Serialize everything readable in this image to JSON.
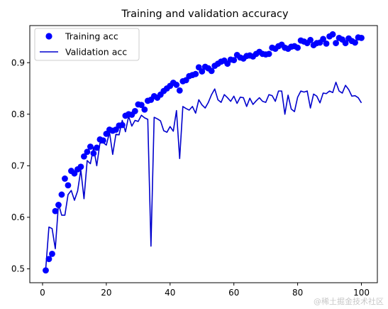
{
  "chart_data": {
    "type": "line",
    "title": "Training and validation accuracy",
    "xlabel": "",
    "ylabel": "",
    "xlim": [
      -4,
      105
    ],
    "ylim": [
      0.473,
      0.972
    ],
    "xticks": [
      0,
      20,
      40,
      60,
      80,
      100
    ],
    "yticks": [
      0.5,
      0.6,
      0.7,
      0.8,
      0.9
    ],
    "xtick_labels": [
      "0",
      "20",
      "40",
      "60",
      "80",
      "100"
    ],
    "ytick_labels": [
      "0.5",
      "0.6",
      "0.7",
      "0.8",
      "0.9"
    ],
    "grid": false,
    "legend_position": "upper-left",
    "x": [
      1,
      2,
      3,
      4,
      5,
      6,
      7,
      8,
      9,
      10,
      11,
      12,
      13,
      14,
      15,
      16,
      17,
      18,
      19,
      20,
      21,
      22,
      23,
      24,
      25,
      26,
      27,
      28,
      29,
      30,
      31,
      32,
      33,
      34,
      35,
      36,
      37,
      38,
      39,
      40,
      41,
      42,
      43,
      44,
      45,
      46,
      47,
      48,
      49,
      50,
      51,
      52,
      53,
      54,
      55,
      56,
      57,
      58,
      59,
      60,
      61,
      62,
      63,
      64,
      65,
      66,
      67,
      68,
      69,
      70,
      71,
      72,
      73,
      74,
      75,
      76,
      77,
      78,
      79,
      80,
      81,
      82,
      83,
      84,
      85,
      86,
      87,
      88,
      89,
      90,
      91,
      92,
      93,
      94,
      95,
      96,
      97,
      98,
      99,
      100
    ],
    "series": [
      {
        "name": "Training acc",
        "style": "dots",
        "color": "#0000ff",
        "values": [
          0.497,
          0.519,
          0.529,
          0.612,
          0.624,
          0.644,
          0.675,
          0.662,
          0.69,
          0.685,
          0.693,
          0.698,
          0.718,
          0.727,
          0.737,
          0.724,
          0.735,
          0.751,
          0.749,
          0.762,
          0.77,
          0.768,
          0.77,
          0.778,
          0.779,
          0.797,
          0.8,
          0.799,
          0.806,
          0.819,
          0.818,
          0.809,
          0.826,
          0.828,
          0.835,
          0.832,
          0.838,
          0.845,
          0.85,
          0.855,
          0.861,
          0.857,
          0.846,
          0.864,
          0.866,
          0.874,
          0.876,
          0.878,
          0.891,
          0.883,
          0.892,
          0.889,
          0.884,
          0.894,
          0.898,
          0.902,
          0.904,
          0.898,
          0.906,
          0.905,
          0.915,
          0.91,
          0.908,
          0.913,
          0.914,
          0.912,
          0.917,
          0.921,
          0.917,
          0.916,
          0.917,
          0.929,
          0.927,
          0.932,
          0.935,
          0.929,
          0.927,
          0.931,
          0.932,
          0.929,
          0.943,
          0.941,
          0.938,
          0.944,
          0.934,
          0.938,
          0.939,
          0.946,
          0.937,
          0.951,
          0.955,
          0.938,
          0.948,
          0.945,
          0.938,
          0.947,
          0.942,
          0.939,
          0.949,
          0.948
        ]
      },
      {
        "name": "Validation acc",
        "style": "line",
        "color": "#0000cd",
        "values": [
          0.5,
          0.581,
          0.578,
          0.539,
          0.626,
          0.604,
          0.604,
          0.644,
          0.652,
          0.633,
          0.651,
          0.692,
          0.636,
          0.71,
          0.704,
          0.735,
          0.7,
          0.744,
          0.745,
          0.74,
          0.765,
          0.722,
          0.761,
          0.76,
          0.788,
          0.766,
          0.796,
          0.777,
          0.788,
          0.786,
          0.798,
          0.793,
          0.79,
          0.544,
          0.794,
          0.791,
          0.787,
          0.768,
          0.765,
          0.776,
          0.767,
          0.807,
          0.714,
          0.815,
          0.811,
          0.808,
          0.815,
          0.802,
          0.828,
          0.818,
          0.812,
          0.823,
          0.838,
          0.849,
          0.828,
          0.823,
          0.838,
          0.832,
          0.825,
          0.835,
          0.821,
          0.833,
          0.832,
          0.815,
          0.831,
          0.819,
          0.826,
          0.832,
          0.825,
          0.823,
          0.838,
          0.836,
          0.825,
          0.845,
          0.845,
          0.8,
          0.837,
          0.81,
          0.805,
          0.833,
          0.845,
          0.843,
          0.845,
          0.812,
          0.839,
          0.835,
          0.822,
          0.841,
          0.84,
          0.845,
          0.842,
          0.862,
          0.845,
          0.841,
          0.856,
          0.848,
          0.835,
          0.836,
          0.832,
          0.822
        ]
      }
    ]
  },
  "watermark": "@稀土掘金技术社区"
}
